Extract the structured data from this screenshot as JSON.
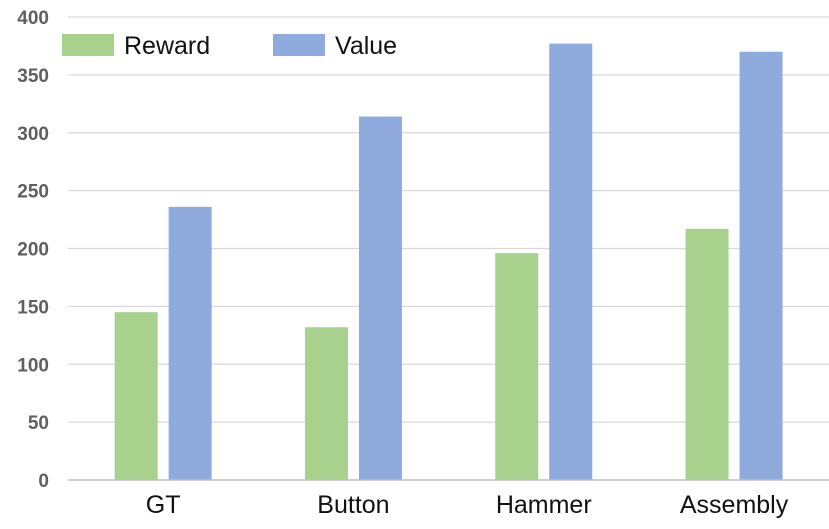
{
  "chart_data": {
    "type": "bar",
    "title": "",
    "xlabel": "",
    "ylabel": "",
    "categories": [
      "GT",
      "Button",
      "Hammer",
      "Assembly"
    ],
    "series": [
      {
        "name": "Reward",
        "color": "#a9d18e",
        "values": [
          145,
          132,
          196,
          217
        ]
      },
      {
        "name": "Value",
        "color": "#8faadc",
        "values": [
          236,
          314,
          377,
          370
        ]
      }
    ],
    "ylim": [
      0,
      400
    ],
    "yticks": [
      "0",
      "50",
      "100",
      "150",
      "200",
      "250",
      "300",
      "350",
      "400"
    ],
    "grid": true,
    "legend": "top-left"
  }
}
